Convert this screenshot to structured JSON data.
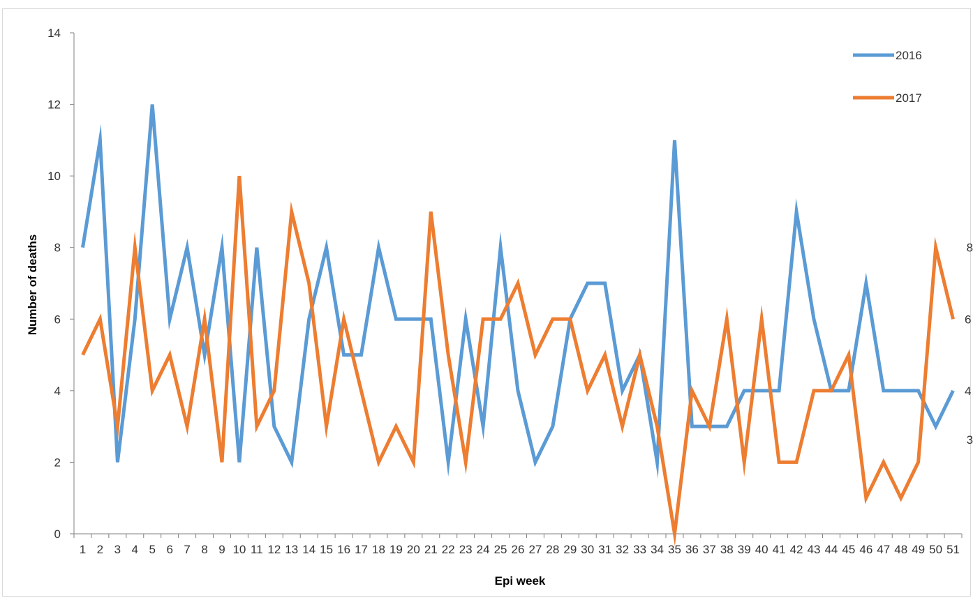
{
  "chart_data": {
    "type": "line",
    "xlabel": "Epi week",
    "ylabel": "Number of deaths",
    "ylim": [
      0,
      14
    ],
    "yticks": [
      0,
      2,
      4,
      6,
      8,
      10,
      12,
      14
    ],
    "x": [
      1,
      2,
      3,
      4,
      5,
      6,
      7,
      8,
      9,
      10,
      11,
      12,
      13,
      14,
      15,
      16,
      17,
      18,
      19,
      20,
      21,
      22,
      23,
      24,
      25,
      26,
      27,
      28,
      29,
      30,
      31,
      32,
      33,
      34,
      35,
      36,
      37,
      38,
      39,
      40,
      41,
      42,
      43,
      44,
      45,
      46,
      47,
      48,
      49,
      50,
      51
    ],
    "grid": false,
    "legend_position": "top-right",
    "series": [
      {
        "name": "2016",
        "color": "#5b9bd5",
        "values": [
          8,
          11,
          2,
          6,
          12,
          6,
          8,
          5,
          8,
          2,
          8,
          3,
          2,
          6,
          8,
          5,
          5,
          8,
          6,
          6,
          6,
          2,
          6,
          3,
          8,
          4,
          2,
          3,
          6,
          7,
          7,
          4,
          5,
          2,
          11,
          3,
          3,
          3,
          4,
          4,
          4,
          9,
          6,
          4,
          4,
          7,
          4,
          4,
          4,
          3,
          4
        ],
        "end_label": "4"
      },
      {
        "name": "2017",
        "color": "#ed7d31",
        "values": [
          5,
          6,
          3,
          8,
          4,
          5,
          3,
          6,
          2,
          10,
          3,
          4,
          9,
          7,
          3,
          6,
          4,
          2,
          3,
          2,
          9,
          5,
          2,
          6,
          6,
          7,
          5,
          6,
          6,
          4,
          5,
          3,
          5,
          3,
          0,
          4,
          3,
          6,
          2,
          6,
          2,
          2,
          4,
          4,
          5,
          1,
          2,
          1,
          2,
          8,
          6
        ],
        "end_label": "6"
      }
    ],
    "annotations": [
      {
        "text": "8",
        "week": 50,
        "value": 8
      },
      {
        "text": "3",
        "week": 50,
        "value": 3
      }
    ]
  }
}
